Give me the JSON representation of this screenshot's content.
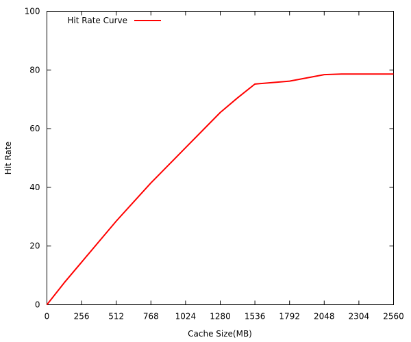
{
  "chart_data": {
    "type": "line",
    "title": "",
    "xlabel": "Cache Size(MB)",
    "ylabel": "Hit Rate",
    "xlim": [
      0,
      2560
    ],
    "ylim": [
      0,
      100
    ],
    "xticks": [
      0,
      256,
      512,
      768,
      1024,
      1280,
      1536,
      1792,
      2048,
      2304,
      2560
    ],
    "yticks": [
      0,
      20,
      40,
      60,
      80,
      100
    ],
    "grid": false,
    "legend_position": "top-left",
    "series": [
      {
        "name": "Hit Rate Curve",
        "color": "#ff0000",
        "x": [
          0,
          128,
          256,
          384,
          512,
          640,
          768,
          896,
          1024,
          1152,
          1280,
          1408,
          1536,
          1664,
          1792,
          1920,
          2048,
          2176,
          2304,
          2432,
          2560
        ],
        "y": [
          0,
          7.5,
          14.5,
          21.5,
          28.5,
          35,
          41.5,
          47.5,
          53.5,
          59.5,
          65.5,
          70.5,
          75.2,
          75.7,
          76.2,
          77.3,
          78.4,
          78.6,
          78.6,
          78.6,
          78.6
        ]
      }
    ]
  }
}
